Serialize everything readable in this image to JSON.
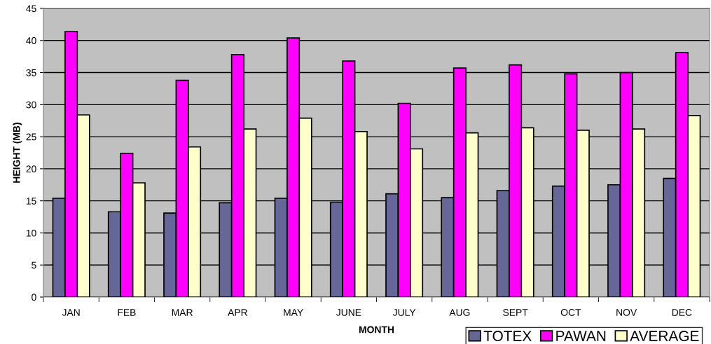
{
  "chart_data": {
    "type": "bar",
    "xlabel": "MONTH",
    "ylabel": "HEIGHT (MB)",
    "categories": [
      "JAN",
      "FEB",
      "MAR",
      "APR",
      "MAY",
      "JUNE",
      "JULY",
      "AUG",
      "SEPT",
      "OCT",
      "NOV",
      "DEC"
    ],
    "series": [
      {
        "name": "TOTEX",
        "color": "#666699",
        "values": [
          15.4,
          13.3,
          13.1,
          14.7,
          15.4,
          14.8,
          16.1,
          15.5,
          16.6,
          17.3,
          17.5,
          18.5
        ]
      },
      {
        "name": "PAWAN",
        "color": "#ff00ff",
        "values": [
          41.4,
          22.4,
          33.8,
          37.8,
          40.4,
          36.8,
          30.2,
          35.7,
          36.2,
          34.8,
          35.0,
          38.1
        ]
      },
      {
        "name": "AVERAGE",
        "color": "#ffffcc",
        "values": [
          28.4,
          17.8,
          23.4,
          26.2,
          27.9,
          25.8,
          23.1,
          25.6,
          26.4,
          26.0,
          26.2,
          28.3
        ]
      }
    ],
    "ylim": [
      0,
      45
    ],
    "yticks": [
      0,
      5,
      10,
      15,
      20,
      25,
      30,
      35,
      40,
      45
    ],
    "grid": "y",
    "legend": "bottom right"
  }
}
